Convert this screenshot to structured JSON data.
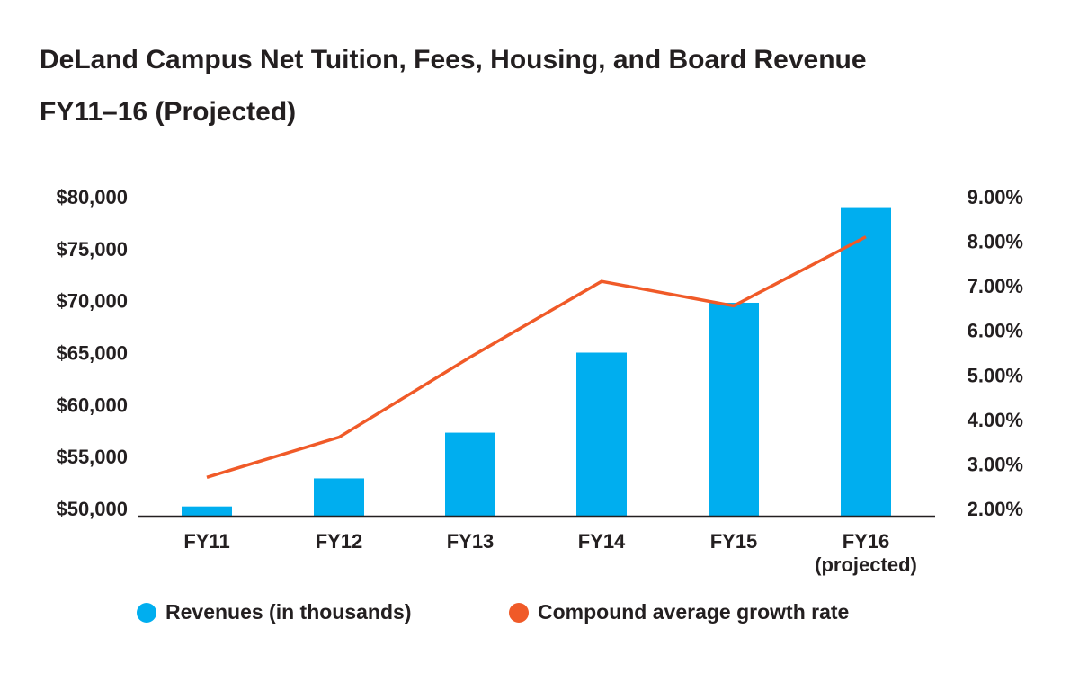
{
  "title_line1": "DeLand Campus Net Tuition, Fees, Housing, and Board Revenue",
  "title_line2": "FY11–16 (Projected)",
  "chart_data": {
    "type": "bar",
    "categories": [
      "FY11",
      "FY12",
      "FY13",
      "FY14",
      "FY15",
      "FY16 (projected)"
    ],
    "category_lines": [
      [
        "FY11"
      ],
      [
        "FY12"
      ],
      [
        "FY13"
      ],
      [
        "FY14"
      ],
      [
        "FY15"
      ],
      [
        "FY16",
        "(projected)"
      ]
    ],
    "series": [
      {
        "name": "Revenues (in thousands)",
        "type": "bar",
        "axis": "left",
        "values": [
          50200,
          52900,
          57300,
          65000,
          69800,
          79000
        ],
        "color": "#00aeef"
      },
      {
        "name": "Compound average growth rate",
        "type": "line",
        "axis": "right",
        "values": [
          2.7,
          3.6,
          5.4,
          7.1,
          6.55,
          8.1
        ],
        "color": "#f05a28"
      }
    ],
    "y_left": {
      "lim": [
        50000,
        80000
      ],
      "ticks": [
        "$80,000",
        "$75,000",
        "$70,000",
        "$65,000",
        "$60,000",
        "$55,000",
        "$50,000"
      ],
      "tick_values": [
        80000,
        75000,
        70000,
        65000,
        60000,
        55000,
        50000
      ]
    },
    "y_right": {
      "lim": [
        2.0,
        9.0
      ],
      "ticks": [
        "9.00%",
        "8.00%",
        "7.00%",
        "6.00%",
        "5.00%",
        "4.00%",
        "3.00%",
        "2.00%"
      ],
      "tick_values": [
        9,
        8,
        7,
        6,
        5,
        4,
        3,
        2
      ]
    },
    "grid": false,
    "legend_position": "bottom"
  }
}
